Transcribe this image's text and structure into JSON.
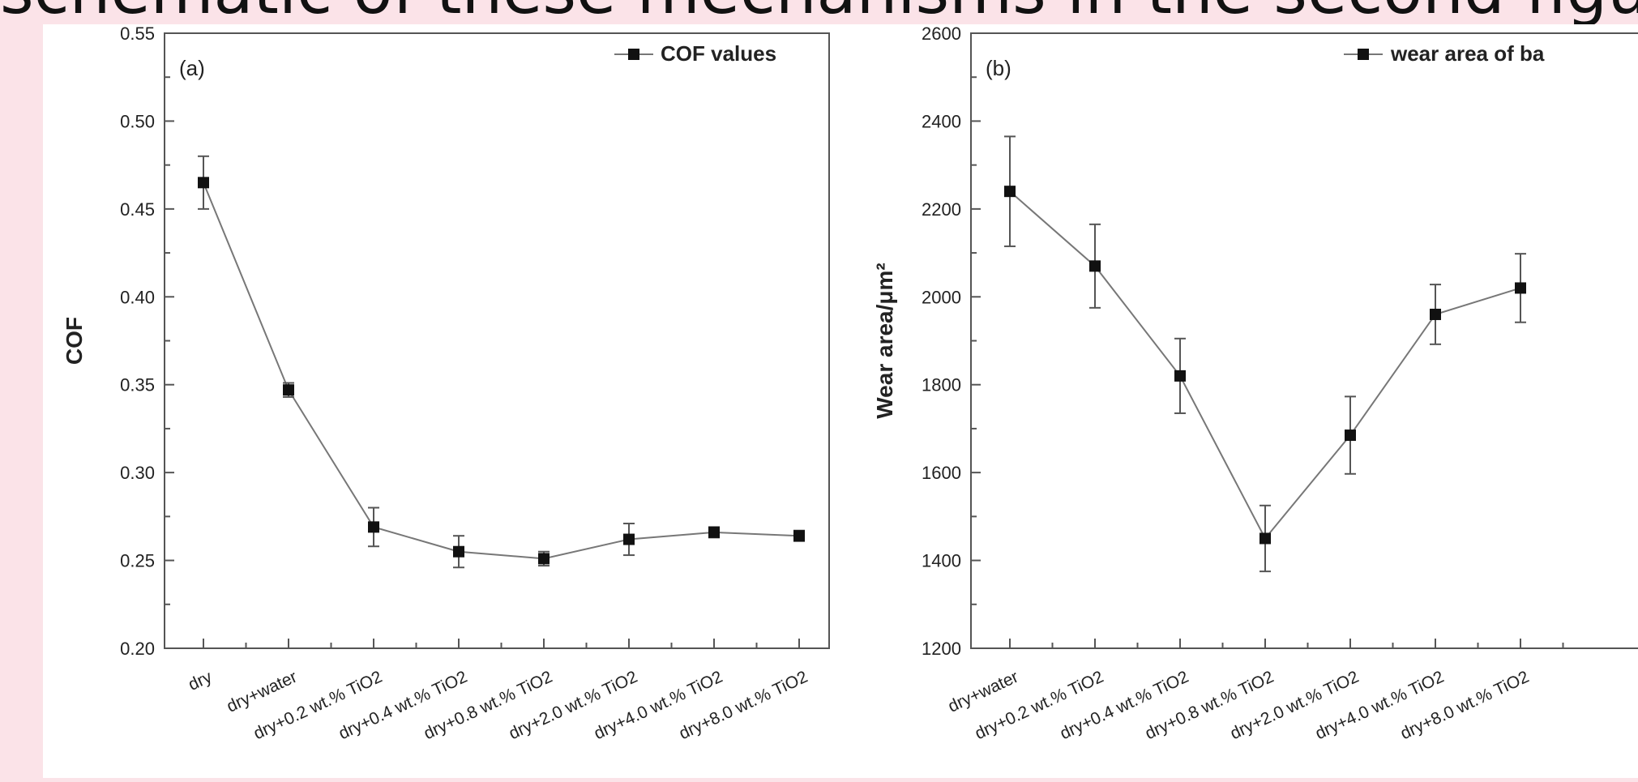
{
  "banner": {
    "text": "schematic of these mechanisms in the second figure"
  },
  "chart_data": [
    {
      "type": "line",
      "panel_label": "(a)",
      "ylabel": "COF",
      "xlabel": "",
      "ylim": [
        0.2,
        0.55
      ],
      "yticks": [
        "0.55",
        "0.50",
        "0.45",
        "0.40",
        "0.35",
        "0.30",
        "0.25",
        "0.20"
      ],
      "categories": [
        "dry",
        "dry+water",
        "dry+0.2 wt.% TiO2",
        "dry+0.4 wt.% TiO2",
        "dry+0.8 wt.% TiO2",
        "dry+2.0 wt.% TiO2",
        "dry+4.0 wt.% TiO2",
        "dry+8.0 wt.% TiO2"
      ],
      "series": [
        {
          "name": "COF values",
          "values": [
            0.465,
            0.347,
            0.269,
            0.255,
            0.251,
            0.262,
            0.266,
            0.264
          ],
          "errors": [
            0.015,
            0.004,
            0.011,
            0.009,
            0.004,
            0.009,
            0.003,
            0.003
          ]
        }
      ],
      "legend": "top-right",
      "grid": false
    },
    {
      "type": "line",
      "panel_label": "(b)",
      "ylabel": "Wear area/μm²",
      "xlabel": "",
      "ylim": [
        1200,
        2600
      ],
      "yticks": [
        "2600",
        "2400",
        "2200",
        "2000",
        "1800",
        "1600",
        "1400",
        "1200"
      ],
      "categories": [
        "dry+water",
        "dry+0.2 wt.% TiO2",
        "dry+0.4 wt.% TiO2",
        "dry+0.8 wt.% TiO2",
        "dry+2.0 wt.% TiO2",
        "dry+4.0 wt.% TiO2",
        "dry+8.0 wt.% TiO2"
      ],
      "series": [
        {
          "name": "wear area of ba",
          "values": [
            2240,
            2070,
            1820,
            1450,
            1685,
            1960,
            2020
          ],
          "errors": [
            125,
            95,
            85,
            75,
            88,
            68,
            78
          ]
        }
      ],
      "legend": "top-right",
      "grid": false
    }
  ]
}
